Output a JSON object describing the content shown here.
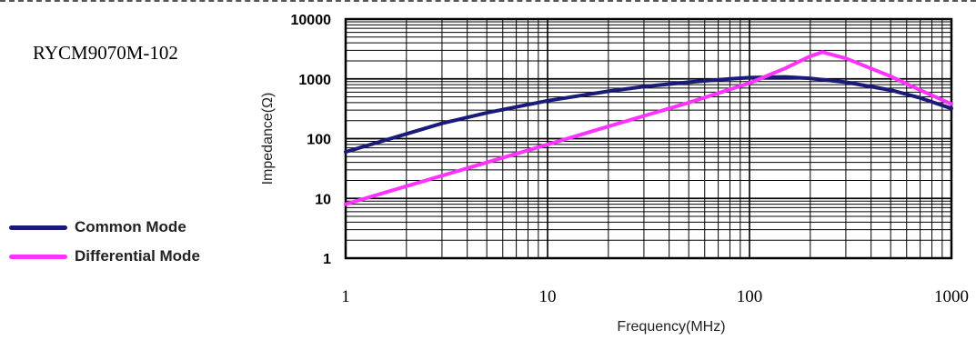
{
  "part_number": "RYCM9070M-102",
  "chart_data": {
    "type": "line",
    "title": "",
    "xlabel": "Frequency(MHz)",
    "ylabel": "Impedance(Ω)",
    "xscale": "log",
    "yscale": "log",
    "xlim": [
      1,
      1000
    ],
    "ylim": [
      1,
      10000
    ],
    "x_ticks": [
      "1",
      "10",
      "100",
      "1000"
    ],
    "y_ticks": [
      "1",
      "10",
      "100",
      "1000",
      "10000"
    ],
    "grid": true,
    "legend_position": "left",
    "series": [
      {
        "name": "Common Mode",
        "color": "#1a1a7a",
        "x": [
          1,
          2,
          3,
          5,
          10,
          20,
          30,
          50,
          80,
          100,
          150,
          200,
          300,
          500,
          700,
          1000
        ],
        "y": [
          60,
          120,
          180,
          270,
          430,
          620,
          740,
          880,
          1000,
          1050,
          1080,
          1020,
          880,
          650,
          480,
          320
        ]
      },
      {
        "name": "Differential Mode",
        "color": "#ff33ff",
        "x": [
          1,
          2,
          5,
          10,
          20,
          50,
          100,
          150,
          200,
          230,
          300,
          500,
          700,
          1000
        ],
        "y": [
          8,
          16,
          40,
          80,
          160,
          400,
          850,
          1500,
          2400,
          2800,
          2200,
          1100,
          650,
          380
        ]
      }
    ]
  }
}
